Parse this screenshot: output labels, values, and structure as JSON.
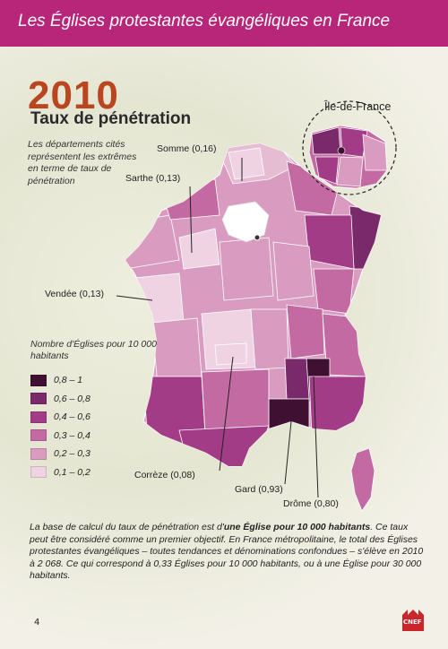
{
  "header": {
    "title": "Les Églises protestantes évangéliques en France"
  },
  "year": "2010",
  "subtitle": "Taux de pénétration",
  "description": "Les départements cités représentent les extrêmes en terme de taux de pénétration",
  "inset_title": "Île-de-France",
  "callouts": [
    {
      "label": "Somme (0,16)"
    },
    {
      "label": "Sarthe (0,13)"
    },
    {
      "label": "Vendée (0,13)"
    },
    {
      "label": "Corrèze (0,08)"
    },
    {
      "label": "Gard (0,93)"
    },
    {
      "label": "Drôme (0,80)"
    }
  ],
  "legend": {
    "title": "Nombre d'Églises pour 10 000 habitants",
    "items": [
      {
        "label": "0,8 – 1",
        "color": "#3f1032"
      },
      {
        "label": "0,6 – 0,8",
        "color": "#7a2a6a"
      },
      {
        "label": "0,4 – 0,6",
        "color": "#a33c86"
      },
      {
        "label": "0,3 – 0,4",
        "color": "#c46aa3"
      },
      {
        "label": "0,2 – 0,3",
        "color": "#d99cc0"
      },
      {
        "label": "0,1 – 0,2",
        "color": "#efd3e3"
      }
    ]
  },
  "body": {
    "p1": "La base de calcul du taux de pénétration est d'",
    "p1_bold": "une Église pour 10 000 habitants",
    "p2": ". Ce taux peut être considéré comme un premier objectif. En France métropolitaine, le total des Églises protestantes évangéliques – toutes tendances et dénominations confondues – s'élève en 2010 à 2 068. Ce qui correspond à 0,33 Églises pour 10 000 habitants, ou à une Église pour 30 000 habitants."
  },
  "page_number": "4",
  "logo_text": "CNEF",
  "colors": {
    "brand": "#b8267a",
    "year": "#b9461f"
  }
}
